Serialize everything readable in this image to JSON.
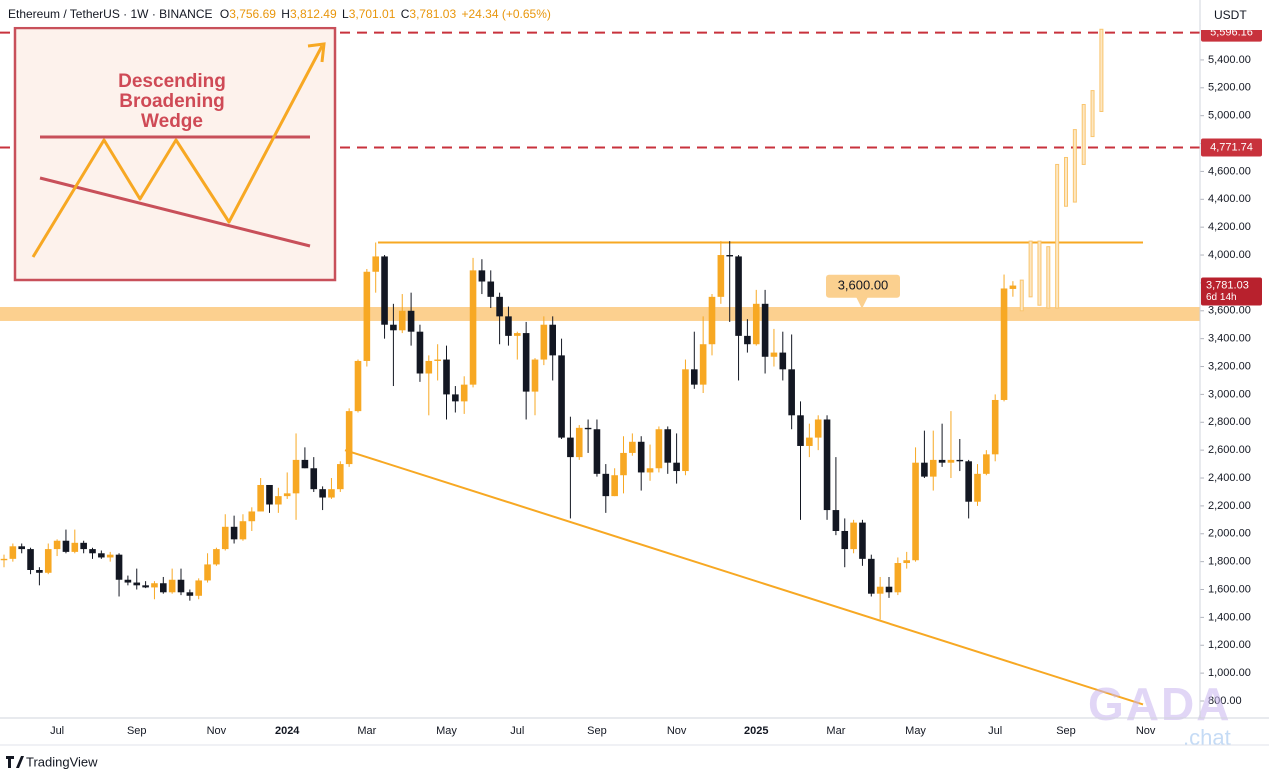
{
  "chart_data": {
    "type": "candlestick",
    "title": "Ethereum / TetherUS · 1W · BINANCE",
    "ohlc_header": [
      {
        "key": "O",
        "value": "3,756.69"
      },
      {
        "key": "H",
        "value": "3,812.49"
      },
      {
        "key": "L",
        "value": "3,701.01"
      },
      {
        "key": "C",
        "value": "3,781.03"
      }
    ],
    "change": "+24.34 (+0.65%)",
    "y_axis_unit": "USDT",
    "categories": [
      null,
      null,
      null,
      null,
      null,
      null,
      "Jul",
      null,
      null,
      null,
      null,
      null,
      null,
      null,
      null,
      "Sep",
      null,
      null,
      null,
      null,
      null,
      null,
      null,
      null,
      "Nov",
      null,
      null,
      null,
      null,
      null,
      null,
      null,
      "2024",
      null,
      null,
      null,
      null,
      null,
      null,
      null,
      null,
      "Mar",
      null,
      null,
      null,
      null,
      null,
      null,
      null,
      null,
      "May",
      null,
      null,
      null,
      null,
      null,
      null,
      null,
      "Jul",
      null,
      null,
      null,
      null,
      null,
      null,
      null,
      null,
      "Sep",
      null,
      null,
      null,
      null,
      null,
      null,
      null,
      null,
      "Nov",
      null,
      null,
      null,
      null,
      null,
      null,
      null,
      null,
      "2025",
      null,
      null,
      null,
      null,
      null,
      null,
      null,
      null,
      "Mar",
      null,
      null,
      null,
      null,
      null,
      null,
      null,
      null,
      "May",
      null,
      null,
      null,
      null,
      null,
      null,
      null,
      null,
      "Jul",
      null,
      null,
      null,
      null,
      null,
      null,
      null,
      "Sep",
      null,
      null,
      null,
      null,
      null,
      null,
      null,
      null,
      "Nov"
    ],
    "open": [
      1810,
      1820,
      1910,
      1890,
      1740,
      1720,
      1890,
      1950,
      1870,
      1935,
      1890,
      1860,
      1830,
      1850,
      1670,
      1650,
      1630,
      1615,
      1645,
      1580,
      1670,
      1580,
      1555,
      1665,
      1780,
      1890,
      2050,
      1960,
      2090,
      2160,
      2350,
      2210,
      2270,
      2290,
      2530,
      2470,
      2320,
      2260,
      2320,
      2500,
      2880,
      3240,
      3880,
      3990,
      3500,
      3460,
      3600,
      3450,
      3150,
      3240,
      3250,
      3000,
      2950,
      3070,
      3890,
      3810,
      3700,
      3560,
      3420,
      3440,
      3020,
      3250,
      3500,
      3280,
      2690,
      2550,
      2760,
      2750,
      2430,
      2270,
      2420,
      2580,
      2660,
      2440,
      2470,
      2750,
      2510,
      2450,
      3180,
      3070,
      3360,
      3700,
      4000,
      3990,
      3420,
      3360,
      3650,
      3270,
      3300,
      3180,
      2850,
      2630,
      2690,
      2820,
      2170,
      2020,
      1890,
      2080,
      1820,
      1570,
      1620,
      1580,
      1790,
      1810,
      2510,
      2410,
      2530,
      2510,
      2530,
      2520,
      2230,
      2430,
      2570,
      2960,
      3756.69,
      null,
      null,
      null,
      null,
      null,
      null,
      null,
      null,
      null,
      null,
      null,
      null,
      null,
      null,
      null
    ],
    "high": [
      1850,
      1930,
      1930,
      1900,
      1760,
      1930,
      1960,
      2030,
      2030,
      1950,
      1900,
      1880,
      1870,
      1860,
      1700,
      1750,
      1660,
      1660,
      1690,
      1750,
      1750,
      1600,
      1680,
      1860,
      1900,
      2140,
      2130,
      2140,
      2190,
      2400,
      2350,
      2330,
      2440,
      2720,
      2620,
      2550,
      2340,
      2400,
      2520,
      2900,
      3250,
      3900,
      4090,
      4000,
      3650,
      3720,
      3730,
      3500,
      3280,
      3360,
      3350,
      3060,
      3130,
      3980,
      3970,
      3890,
      3730,
      3630,
      3450,
      3520,
      3260,
      3560,
      3560,
      3400,
      2840,
      2780,
      2820,
      2820,
      2500,
      2470,
      2700,
      2720,
      2700,
      2640,
      2770,
      2770,
      2720,
      3250,
      3450,
      3560,
      3720,
      4100,
      4100,
      4000,
      3540,
      3750,
      3750,
      3470,
      3450,
      3430,
      2950,
      2790,
      2850,
      2850,
      2550,
      2110,
      2100,
      2100,
      1850,
      1690,
      1690,
      1830,
      1870,
      2620,
      2740,
      2740,
      2790,
      2880,
      2680,
      2530,
      2500,
      2600,
      3000,
      3860,
      3812.49,
      null,
      null,
      null,
      null,
      null,
      null,
      null,
      null,
      null,
      null,
      null,
      null,
      null,
      null,
      null
    ],
    "low": [
      1760,
      1800,
      1860,
      1710,
      1630,
      1710,
      1840,
      1860,
      1860,
      1860,
      1820,
      1820,
      1800,
      1550,
      1630,
      1600,
      1610,
      1530,
      1570,
      1570,
      1560,
      1520,
      1530,
      1650,
      1770,
      1880,
      1930,
      1950,
      2020,
      2160,
      2150,
      2150,
      2250,
      2100,
      2470,
      2300,
      2170,
      2250,
      2300,
      2480,
      2870,
      3200,
      3730,
      3400,
      3060,
      3440,
      3350,
      3090,
      2850,
      3100,
      2820,
      2870,
      2860,
      3050,
      3720,
      3620,
      3360,
      3350,
      3250,
      2820,
      2850,
      3210,
      3100,
      2680,
      2110,
      2530,
      2580,
      2410,
      2150,
      2270,
      2290,
      2560,
      2310,
      2380,
      2440,
      2430,
      2360,
      2420,
      3040,
      3010,
      3280,
      3650,
      3520,
      3100,
      3300,
      3350,
      3150,
      3200,
      3100,
      2750,
      2100,
      2550,
      2600,
      2100,
      1990,
      1760,
      1860,
      1770,
      1550,
      1385,
      1540,
      1560,
      1750,
      1800,
      2400,
      2310,
      2480,
      2400,
      2450,
      2110,
      2200,
      2420,
      2520,
      2950,
      3701.01,
      null,
      null,
      null,
      null,
      null,
      null,
      null,
      null,
      null,
      null,
      null,
      null,
      null,
      null,
      null
    ],
    "close": [
      1820,
      1910,
      1890,
      1740,
      1720,
      1890,
      1950,
      1870,
      1935,
      1890,
      1860,
      1830,
      1850,
      1670,
      1650,
      1630,
      1615,
      1645,
      1580,
      1670,
      1580,
      1555,
      1665,
      1780,
      1890,
      2050,
      1960,
      2090,
      2160,
      2350,
      2210,
      2270,
      2290,
      2530,
      2470,
      2320,
      2260,
      2320,
      2500,
      2880,
      3240,
      3880,
      3990,
      3500,
      3460,
      3600,
      3450,
      3150,
      3240,
      3250,
      3000,
      2950,
      3070,
      3890,
      3810,
      3700,
      3560,
      3420,
      3440,
      3020,
      3250,
      3500,
      3280,
      2690,
      2550,
      2760,
      2750,
      2430,
      2270,
      2420,
      2580,
      2660,
      2440,
      2470,
      2750,
      2510,
      2450,
      3180,
      3070,
      3360,
      3700,
      4000,
      3990,
      3420,
      3360,
      3650,
      3270,
      3300,
      3180,
      2850,
      2630,
      2690,
      2820,
      2170,
      2020,
      1890,
      2080,
      1820,
      1570,
      1620,
      1580,
      1790,
      1810,
      2510,
      2410,
      2530,
      2510,
      2530,
      2520,
      2230,
      2430,
      2570,
      2960,
      3760,
      3781.03,
      null,
      null,
      null,
      null,
      null,
      null,
      null,
      null,
      null,
      null,
      null,
      null,
      null,
      null,
      null
    ],
    "up_color": "#f7a823",
    "down_color": "#131722",
    "projection": {
      "color": "#f9c56e",
      "low": [
        null,
        null,
        null,
        null,
        null,
        null,
        null,
        null,
        null,
        null,
        null,
        null,
        null,
        null,
        null,
        null,
        null,
        null,
        null,
        null,
        null,
        null,
        null,
        null,
        null,
        null,
        null,
        null,
        null,
        null,
        null,
        null,
        null,
        null,
        null,
        null,
        null,
        null,
        null,
        null,
        null,
        null,
        null,
        null,
        null,
        null,
        null,
        null,
        null,
        null,
        null,
        null,
        null,
        null,
        null,
        null,
        null,
        null,
        null,
        null,
        null,
        null,
        null,
        null,
        null,
        null,
        null,
        null,
        null,
        null,
        null,
        null,
        null,
        null,
        null,
        null,
        null,
        null,
        null,
        null,
        null,
        null,
        null,
        null,
        null,
        null,
        null,
        null,
        null,
        null,
        null,
        null,
        null,
        null,
        null,
        null,
        null,
        null,
        null,
        null,
        null,
        null,
        null,
        null,
        null,
        null,
        null,
        null,
        null,
        null,
        null,
        null,
        null,
        null,
        null,
        3600,
        3700,
        3640,
        3620,
        3620,
        4350,
        4380,
        4650,
        4850,
        5030,
        null,
        null,
        null,
        null,
        null
      ],
      "high": [
        null,
        null,
        null,
        null,
        null,
        null,
        null,
        null,
        null,
        null,
        null,
        null,
        null,
        null,
        null,
        null,
        null,
        null,
        null,
        null,
        null,
        null,
        null,
        null,
        null,
        null,
        null,
        null,
        null,
        null,
        null,
        null,
        null,
        null,
        null,
        null,
        null,
        null,
        null,
        null,
        null,
        null,
        null,
        null,
        null,
        null,
        null,
        null,
        null,
        null,
        null,
        null,
        null,
        null,
        null,
        null,
        null,
        null,
        null,
        null,
        null,
        null,
        null,
        null,
        null,
        null,
        null,
        null,
        null,
        null,
        null,
        null,
        null,
        null,
        null,
        null,
        null,
        null,
        null,
        null,
        null,
        null,
        null,
        null,
        null,
        null,
        null,
        null,
        null,
        null,
        null,
        null,
        null,
        null,
        null,
        null,
        null,
        null,
        null,
        null,
        null,
        null,
        null,
        null,
        null,
        null,
        null,
        null,
        null,
        null,
        null,
        null,
        null,
        null,
        null,
        3820,
        4100,
        4100,
        4060,
        4650,
        4700,
        4900,
        5080,
        5180,
        5620,
        null,
        null,
        null,
        null,
        null
      ]
    },
    "ylim": [
      678,
      5830
    ],
    "yticks": [
      {
        "value": 800,
        "label": "800.00"
      },
      {
        "value": 1000,
        "label": "1,000.00"
      },
      {
        "value": 1200,
        "label": "1,200.00"
      },
      {
        "value": 1400,
        "label": "1,400.00"
      },
      {
        "value": 1600,
        "label": "1,600.00"
      },
      {
        "value": 1800,
        "label": "1,800.00"
      },
      {
        "value": 2000,
        "label": "2,000.00"
      },
      {
        "value": 2200,
        "label": "2,200.00"
      },
      {
        "value": 2400,
        "label": "2,400.00"
      },
      {
        "value": 2600,
        "label": "2,600.00"
      },
      {
        "value": 2800,
        "label": "2,800.00"
      },
      {
        "value": 3000,
        "label": "3,000.00"
      },
      {
        "value": 3200,
        "label": "3,200.00"
      },
      {
        "value": 3400,
        "label": "3,400.00"
      },
      {
        "value": 3600,
        "label": "3,600.00"
      },
      {
        "value": 3800,
        "label": "3,800.00"
      },
      {
        "value": 4000,
        "label": "4,000.00"
      },
      {
        "value": 4200,
        "label": "4,200.00"
      },
      {
        "value": 4400,
        "label": "4,400.00"
      },
      {
        "value": 4600,
        "label": "4,600.00"
      },
      {
        "value": 4800,
        "label": "4,800.00"
      },
      {
        "value": 5000,
        "label": "5,000.00"
      },
      {
        "value": 5200,
        "label": "5,200.00"
      },
      {
        "value": 5400,
        "label": "5,400.00"
      }
    ],
    "grid": false,
    "levels": [
      {
        "value": 5596.16,
        "label": "5,596.16",
        "color": "#c8323c"
      },
      {
        "value": 4771.74,
        "label": "4,771.74",
        "color": "#c8323c"
      }
    ],
    "resistance": {
      "value": 4090,
      "color": "#f7a823"
    },
    "zone": {
      "values": [
        3527,
        3627
      ],
      "color": "#fcd08f"
    },
    "zone_callout": {
      "value": 3600,
      "label": "3,600.00"
    },
    "support_trendline": {
      "values": [
        2600,
        775
      ],
      "color": "#f7a823"
    },
    "last_price": {
      "value": 3781.03,
      "label": "3,781.03",
      "countdown": "6d 14h",
      "color": "#b8212d"
    },
    "inset": {
      "title_lines": [
        "Descending",
        "Broadening",
        "Wedge"
      ]
    },
    "watermark": [
      "GADA",
      ".chat"
    ],
    "brand": "TradingView"
  }
}
